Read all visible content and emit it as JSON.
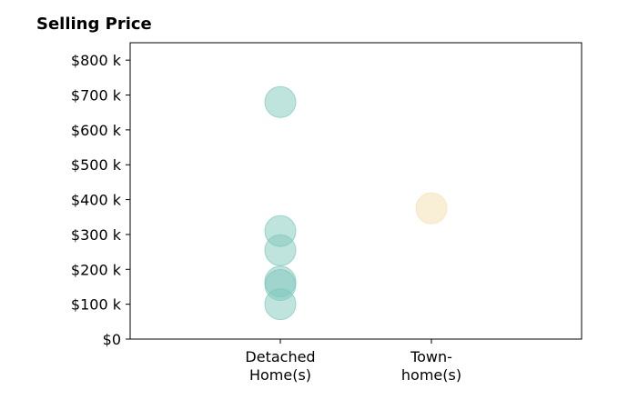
{
  "chart_data": {
    "type": "scatter",
    "title": "Selling Price",
    "xlabel": "",
    "ylabel": "",
    "categories": [
      [
        "Detached",
        "Home(s)"
      ],
      [
        "Town-",
        "home(s)"
      ]
    ],
    "ylim": [
      0,
      850000
    ],
    "y_ticks": [
      0,
      100000,
      200000,
      300000,
      400000,
      500000,
      600000,
      700000,
      800000
    ],
    "y_tick_labels": [
      "$0",
      "$100 k",
      "$200 k",
      "$300 k",
      "$400 k",
      "$500 k",
      "$600 k",
      "$700 k",
      "$800 k"
    ],
    "series": [
      {
        "category_index": 0,
        "color": "#7fc7bb",
        "values": [
          680000,
          310000,
          255000,
          165000,
          155000,
          100000
        ]
      },
      {
        "category_index": 1,
        "color": "#f3e0b0",
        "values": [
          375000
        ]
      }
    ],
    "grid": false,
    "legend": "none"
  }
}
